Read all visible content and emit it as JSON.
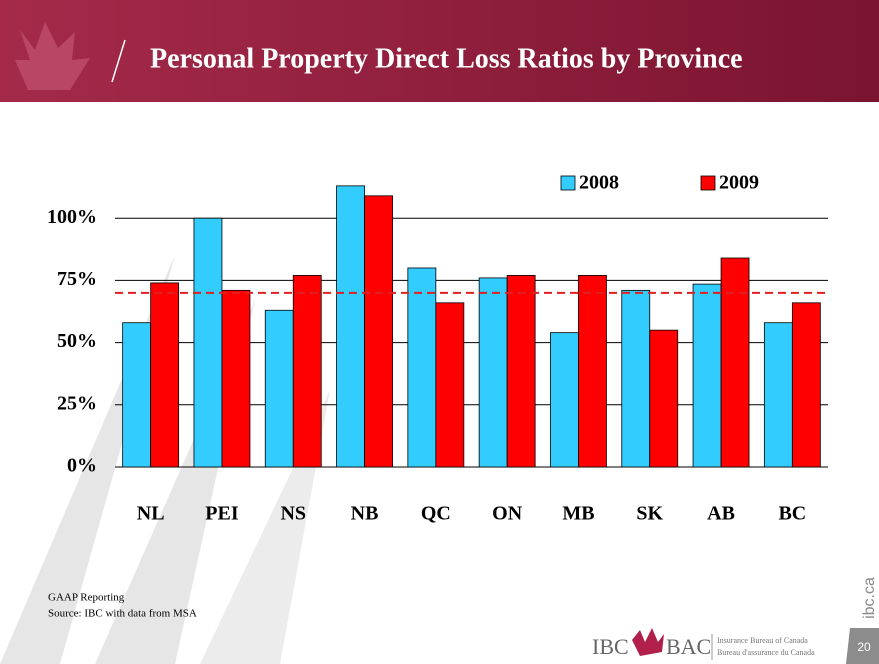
{
  "chart_data": {
    "type": "bar",
    "title": "Personal Property Direct Loss Ratios by Province",
    "categories": [
      "NL",
      "PEI",
      "NS",
      "NB",
      "QC",
      "ON",
      "MB",
      "SK",
      "AB",
      "BC"
    ],
    "series": [
      {
        "name": "2008",
        "color": "#33ccff",
        "values": [
          58,
          100,
          63,
          113,
          80,
          76,
          54,
          71,
          73.5,
          58
        ]
      },
      {
        "name": "2009",
        "color": "#ff0000",
        "values": [
          74,
          71,
          77,
          109,
          66,
          77,
          77,
          55,
          84,
          66
        ]
      }
    ],
    "reference_line": {
      "value": 70,
      "color": "#e02020"
    },
    "ylim": [
      0,
      125
    ],
    "yticks": [
      {
        "value": 0,
        "label": "0%"
      },
      {
        "value": 25,
        "label": "25%"
      },
      {
        "value": 50,
        "label": "50%"
      },
      {
        "value": 75,
        "label": "75%"
      },
      {
        "value": 100,
        "label": "100%"
      }
    ],
    "grid": true,
    "legend": "top-right"
  },
  "notes": [
    "GAAP Reporting",
    "Source: IBC with data from MSA"
  ],
  "footer": {
    "site": "ibc.ca",
    "page": "20",
    "logo_left": "IBC",
    "logo_right": "BAC",
    "org_en": "Insurance Bureau of Canada",
    "org_fr": "Bureau d'assurance du Canada"
  }
}
